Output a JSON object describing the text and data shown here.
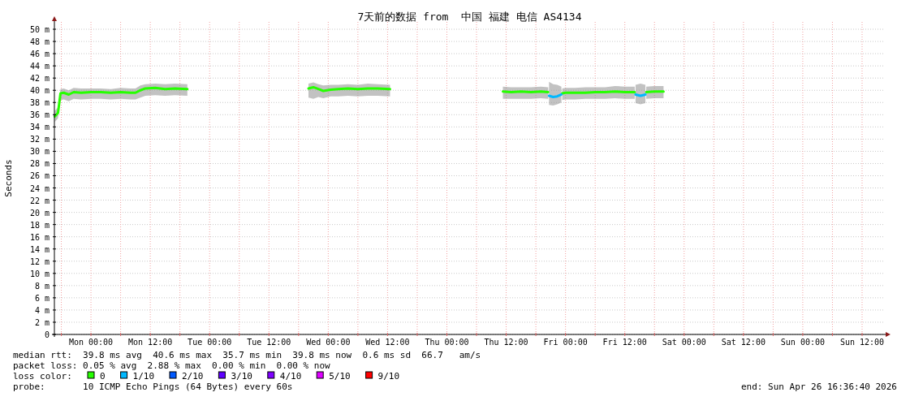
{
  "chart_data": {
    "type": "line",
    "title": "7天前的数据 from  中国 福建 电信 AS4134",
    "ylabel": "Seconds",
    "xlim": [
      "2026-04-19T16:36",
      "2026-04-26T16:36"
    ],
    "xticks": [
      {
        "value": "2026-04-19T18:00",
        "label": null
      },
      {
        "value": "2026-04-20T00:00",
        "label": "Mon 00:00"
      },
      {
        "value": "2026-04-20T06:00",
        "label": null
      },
      {
        "value": "2026-04-20T12:00",
        "label": "Mon 12:00"
      },
      {
        "value": "2026-04-20T18:00",
        "label": null
      },
      {
        "value": "2026-04-21T00:00",
        "label": "Tue 00:00"
      },
      {
        "value": "2026-04-21T06:00",
        "label": null
      },
      {
        "value": "2026-04-21T12:00",
        "label": "Tue 12:00"
      },
      {
        "value": "2026-04-21T18:00",
        "label": null
      },
      {
        "value": "2026-04-22T00:00",
        "label": "Wed 00:00"
      },
      {
        "value": "2026-04-22T06:00",
        "label": null
      },
      {
        "value": "2026-04-22T12:00",
        "label": "Wed 12:00"
      },
      {
        "value": "2026-04-22T18:00",
        "label": null
      },
      {
        "value": "2026-04-23T00:00",
        "label": "Thu 00:00"
      },
      {
        "value": "2026-04-23T06:00",
        "label": null
      },
      {
        "value": "2026-04-23T12:00",
        "label": "Thu 12:00"
      },
      {
        "value": "2026-04-23T18:00",
        "label": null
      },
      {
        "value": "2026-04-24T00:00",
        "label": "Fri 00:00"
      },
      {
        "value": "2026-04-24T06:00",
        "label": null
      },
      {
        "value": "2026-04-24T12:00",
        "label": "Fri 12:00"
      },
      {
        "value": "2026-04-24T18:00",
        "label": null
      },
      {
        "value": "2026-04-25T00:00",
        "label": "Sat 00:00"
      },
      {
        "value": "2026-04-25T06:00",
        "label": null
      },
      {
        "value": "2026-04-25T12:00",
        "label": "Sat 12:00"
      },
      {
        "value": "2026-04-25T18:00",
        "label": null
      },
      {
        "value": "2026-04-26T00:00",
        "label": "Sun 00:00"
      },
      {
        "value": "2026-04-26T06:00",
        "label": null
      },
      {
        "value": "2026-04-26T12:00",
        "label": "Sun 12:00"
      }
    ],
    "ylim": [
      0,
      51.2
    ],
    "yticks": [
      0,
      {
        "value": 2,
        "label": "2 m"
      },
      {
        "value": 4,
        "label": "4 m"
      },
      {
        "value": 6,
        "label": "6 m"
      },
      {
        "value": 8,
        "label": "8 m"
      },
      {
        "value": 10,
        "label": "10 m"
      },
      {
        "value": 12,
        "label": "12 m"
      },
      {
        "value": 14,
        "label": "14 m"
      },
      {
        "value": 16,
        "label": "16 m"
      },
      {
        "value": 18,
        "label": "18 m"
      },
      {
        "value": 20,
        "label": "20 m"
      },
      {
        "value": 22,
        "label": "22 m"
      },
      {
        "value": 24,
        "label": "24 m"
      },
      {
        "value": 26,
        "label": "26 m"
      },
      {
        "value": 28,
        "label": "28 m"
      },
      {
        "value": 30,
        "label": "30 m"
      },
      {
        "value": 32,
        "label": "32 m"
      },
      {
        "value": 34,
        "label": "34 m"
      },
      {
        "value": 36,
        "label": "36 m"
      },
      {
        "value": 38,
        "label": "38 m"
      },
      {
        "value": 40,
        "label": "40 m"
      },
      {
        "value": 42,
        "label": "42 m"
      },
      {
        "value": 44,
        "label": "44 m"
      },
      {
        "value": 46,
        "label": "46 m"
      },
      {
        "value": 48,
        "label": "48 m"
      },
      {
        "value": 50,
        "label": "50 m"
      }
    ],
    "grid": true,
    "legend": "bottom",
    "legend_title": "loss color:",
    "series": [
      {
        "color": "#26ff00",
        "x": [
          "2026-04-21T20:00",
          "2026-04-21T21:00",
          "2026-04-21T22:00",
          "2026-04-21T23:00",
          "2026-04-22T00:30",
          "2026-04-22T02:00",
          "2026-04-22T04:00",
          "2026-04-22T06:00",
          "2026-04-22T08:00",
          "2026-04-22T10:00",
          "2026-04-22T12:30"
        ],
        "values": [
          40.3,
          40.5,
          40.2,
          39.9,
          40.1,
          40.2,
          40.3,
          40.2,
          40.3,
          40.3,
          40.2
        ],
        "lower": [
          38.8,
          38.6,
          38.9,
          38.7,
          39.0,
          39.0,
          39.1,
          39.0,
          39.1,
          39.1,
          39.0
        ],
        "upper": [
          41.1,
          41.3,
          41.0,
          40.8,
          40.9,
          40.9,
          41.0,
          40.9,
          41.1,
          41.0,
          40.9
        ]
      },
      {
        "color": "#26ff00",
        "x": [
          "2026-04-23T11:20",
          "2026-04-23T13:00",
          "2026-04-23T15:00",
          "2026-04-23T17:00",
          "2026-04-23T19:00",
          "2026-04-23T20:30"
        ],
        "values": [
          39.8,
          39.7,
          39.8,
          39.7,
          39.8,
          39.7
        ],
        "lower": [
          38.6,
          38.6,
          38.6,
          38.6,
          38.7,
          38.6
        ],
        "upper": [
          40.6,
          40.5,
          40.5,
          40.5,
          40.6,
          40.5
        ]
      },
      {
        "color": "#26ff00",
        "x": [
          "2026-04-23T23:20",
          "2026-04-24T00:00",
          "2026-04-24T02:00",
          "2026-04-24T04:00",
          "2026-04-24T06:00",
          "2026-04-24T08:00",
          "2026-04-24T10:00",
          "2026-04-24T12:00",
          "2026-04-24T14:00"
        ],
        "values": [
          39.5,
          39.6,
          39.6,
          39.6,
          39.7,
          39.7,
          39.8,
          39.7,
          39.7
        ],
        "lower": [
          38.4,
          38.5,
          38.5,
          38.6,
          38.6,
          38.6,
          38.7,
          38.6,
          38.6
        ],
        "upper": [
          40.3,
          40.4,
          40.4,
          40.5,
          40.5,
          40.5,
          40.7,
          40.6,
          40.6
        ]
      },
      {
        "color": "#26ff00",
        "x": [
          "2026-04-24T16:20",
          "2026-04-24T18:00",
          "2026-04-24T19:50"
        ],
        "values": [
          39.7,
          39.8,
          39.8
        ],
        "lower": [
          38.6,
          38.7,
          38.7
        ],
        "upper": [
          40.6,
          40.7,
          40.7
        ]
      },
      {
        "name": "0",
        "color": "#26ff00",
        "x": [
          "2026-04-19T16:40",
          "2026-04-19T17:20",
          "2026-04-19T17:50",
          "2026-04-19T18:30",
          "2026-04-19T19:30",
          "2026-04-19T20:30",
          "2026-04-19T22:00",
          "2026-04-20T00:00",
          "2026-04-20T02:00",
          "2026-04-20T04:00",
          "2026-04-20T06:00",
          "2026-04-20T08:00",
          "2026-04-20T09:00",
          "2026-04-20T10:00",
          "2026-04-20T11:00",
          "2026-04-20T13:00",
          "2026-04-20T15:00",
          "2026-04-20T17:00",
          "2026-04-20T19:30"
        ],
        "values": [
          35.7,
          36.3,
          39.5,
          39.6,
          39.3,
          39.7,
          39.6,
          39.7,
          39.7,
          39.6,
          39.7,
          39.6,
          39.6,
          40.0,
          40.3,
          40.4,
          40.2,
          40.3,
          40.2
        ],
        "lower": [
          34.8,
          35.4,
          38.4,
          38.5,
          38.2,
          38.6,
          38.5,
          38.6,
          38.6,
          38.5,
          38.6,
          38.5,
          38.5,
          38.8,
          39.1,
          39.2,
          39.1,
          39.2,
          39.1
        ],
        "upper": [
          36.6,
          37.2,
          40.2,
          40.3,
          40.0,
          40.4,
          40.3,
          40.3,
          40.3,
          40.2,
          40.4,
          40.3,
          40.3,
          40.8,
          41.0,
          41.1,
          41.0,
          41.1,
          41.0
        ]
      },
      {
        "name": "1/10",
        "color": "#00b8ff",
        "x": [
          "2026-04-23T20:40",
          "2026-04-23T21:30",
          "2026-04-23T22:20",
          "2026-04-23T23:10"
        ],
        "values": [
          39.1,
          38.9,
          39.0,
          39.3
        ],
        "lower": [
          37.6,
          37.5,
          37.7,
          38.0
        ],
        "upper": [
          41.4,
          41.0,
          40.9,
          40.6
        ]
      },
      {
        "name": "2/10",
        "color": "#0059ff"
      },
      {
        "name": "3/10",
        "color": "#5e00ff"
      },
      {
        "name": "4/10",
        "color": "#7e00ff"
      },
      {
        "name": "5/10",
        "color": "#dd00ff"
      },
      {
        "name": "9/10",
        "color": "#ff0000"
      },
      {
        "color": "#00b8ff",
        "x": [
          "2026-04-24T14:10",
          "2026-04-24T15:10",
          "2026-04-24T16:10"
        ],
        "values": [
          39.3,
          39.1,
          39.3
        ],
        "lower": [
          37.9,
          37.7,
          37.9
        ],
        "upper": [
          40.9,
          41.1,
          40.9
        ]
      }
    ],
    "annotations": [
      "median rtt:  39.8 ms avg  40.6 ms max  35.7 ms min  39.8 ms now  0.6 ms sd  66.7   am/s",
      "packet loss: 0.05 % avg  2.88 % max  0.00 % min  0.00 % now",
      "probe:       10 ICMP Echo Pings (64 Bytes) every 60s",
      "end: Sun Apr 26 16:36:40 2026"
    ]
  }
}
